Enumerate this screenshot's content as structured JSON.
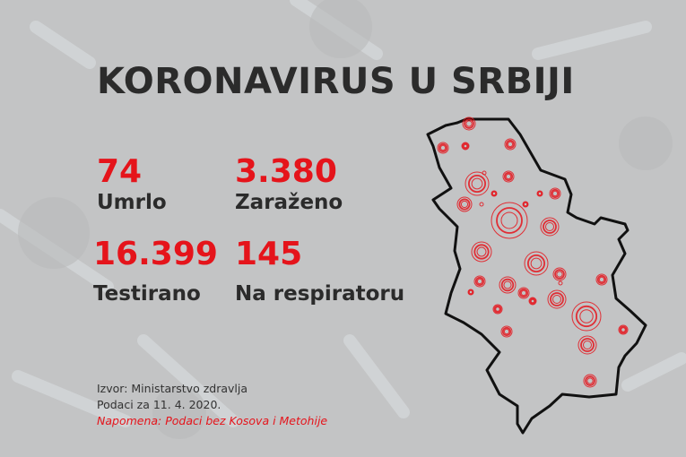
{
  "title": "KORONAVIRUS U SRBIJI",
  "stats": [
    {
      "value": "74",
      "label": "Umrlo"
    },
    {
      "value": "3.380",
      "label": "Zaraženo"
    },
    {
      "value": "16.399",
      "label": "Testirano"
    },
    {
      "value": "145",
      "label": "Na respiratoru"
    }
  ],
  "footer": {
    "source": "Izvor: Ministarstvo zdravlja",
    "date": "Podaci za 11. 4. 2020.",
    "note": "Napomena: Podaci bez Kosova i Metohije"
  },
  "colors": {
    "accent": "#e5141b",
    "text": "#2b2b2b",
    "background": "#c3c4c5"
  }
}
